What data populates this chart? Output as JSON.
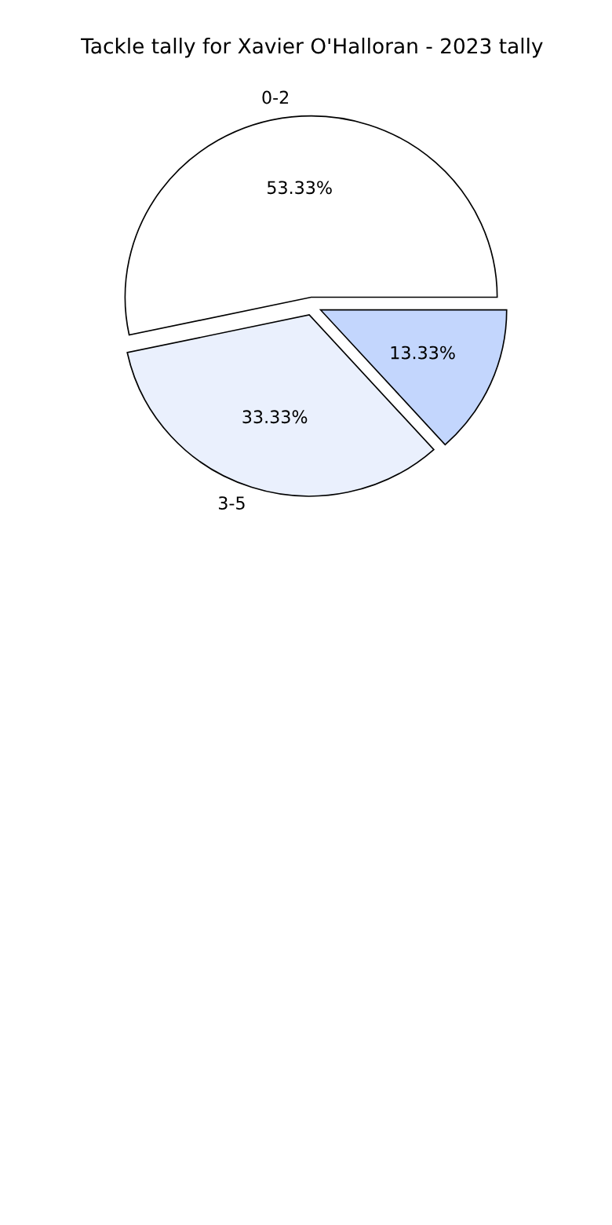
{
  "chart_data": {
    "type": "pie",
    "title": "Tackle tally for Xavier O'Halloran - 2023 tally",
    "categories": [
      "0-2",
      "3-5",
      null
    ],
    "values": [
      53.33,
      33.33,
      13.33
    ],
    "value_labels": [
      "53.33%",
      "33.33%",
      "13.33%"
    ],
    "colors": [
      "#ffffff",
      "#eaf0fd",
      "#c3d6fd"
    ]
  }
}
